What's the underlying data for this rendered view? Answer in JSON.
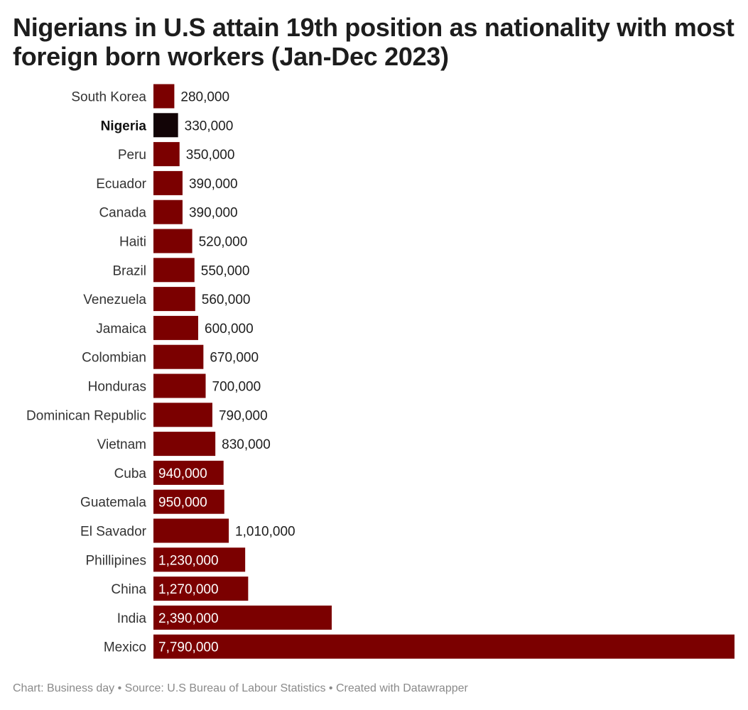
{
  "chart_data": {
    "type": "bar",
    "orientation": "horizontal",
    "title": "Nigerians in U.S attain 19th position as nationality with most foreign born workers (Jan-Dec 2023)",
    "categories": [
      "South Korea",
      "Nigeria",
      "Peru",
      "Ecuador",
      "Canada",
      "Haiti",
      "Brazil",
      "Venezuela",
      "Jamaica",
      "Colombian",
      "Honduras",
      "Dominican Republic",
      "Vietnam",
      "Cuba",
      "Guatemala",
      "El Savador",
      "Phillipines",
      "China",
      "India",
      "Mexico"
    ],
    "values": [
      280000,
      330000,
      350000,
      390000,
      390000,
      520000,
      550000,
      560000,
      600000,
      670000,
      700000,
      790000,
      830000,
      940000,
      950000,
      1010000,
      1230000,
      1270000,
      2390000,
      7790000
    ],
    "value_labels": [
      "280,000",
      "330,000",
      "350,000",
      "390,000",
      "390,000",
      "520,000",
      "550,000",
      "560,000",
      "600,000",
      "670,000",
      "700,000",
      "790,000",
      "830,000",
      "940,000",
      "950,000",
      "1,010,000",
      "1,230,000",
      "1,270,000",
      "2,390,000",
      "7,790,000"
    ],
    "highlight": "Nigeria",
    "xlim": [
      0,
      7790000
    ],
    "xlabel": "",
    "ylabel": "",
    "grid": false,
    "bar_color": "#7b0000",
    "highlight_color": "#120406",
    "label_inside_color": "#ffffff",
    "label_outside_color": "#1d1d1d"
  },
  "footer": {
    "text": "Chart: Business day • Source: U.S Bureau of Labour Statistics • Created with Datawrapper"
  }
}
